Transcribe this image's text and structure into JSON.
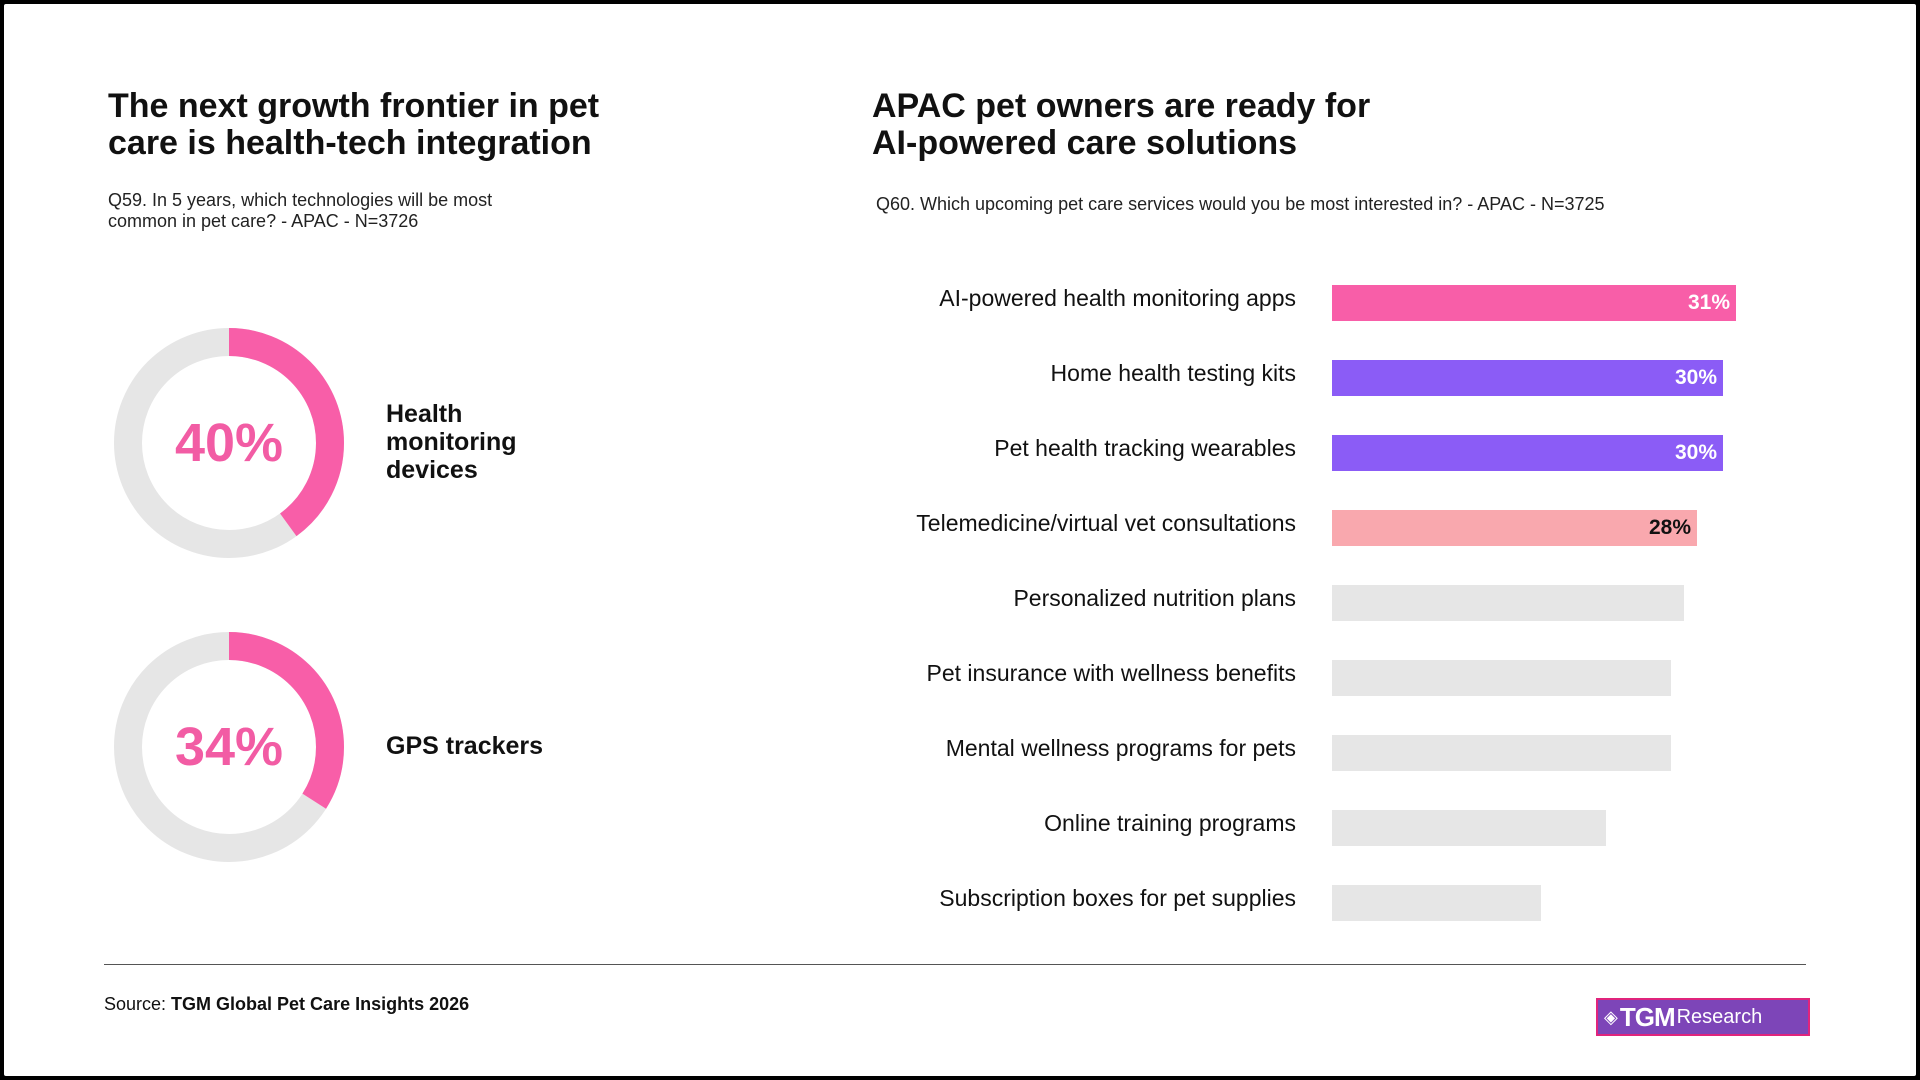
{
  "left": {
    "title_line1": "The next growth frontier in pet",
    "title_line2": "care is health-tech integration",
    "question_line1": "Q59. In 5 years, which technologies will be most",
    "question_line2": "common in pet care? - APAC - N=3726"
  },
  "right": {
    "title_line1": "APAC pet owners are ready for",
    "title_line2": "AI-powered care solutions",
    "question": "Q60. Which upcoming pet care services would you be most interested in? - APAC - N=3725"
  },
  "colors": {
    "pink": "#f85ea8",
    "purple": "#8b5cf6",
    "light_pink": "#f9a8ae",
    "grey": "#e6e6e6"
  },
  "chart_data": [
    {
      "type": "pie",
      "items": [
        {
          "label_lines": [
            "Health",
            "monitoring",
            "devices"
          ],
          "value": 40,
          "value_label": "40%"
        },
        {
          "label_lines": [
            "GPS trackers"
          ],
          "value": 34,
          "value_label": "34%"
        }
      ]
    },
    {
      "type": "bar",
      "orientation": "horizontal",
      "categories": [
        "AI-powered health monitoring apps",
        "Home health testing kits",
        "Pet health tracking wearables",
        "Telemedicine/virtual vet consultations",
        "Personalized nutrition plans",
        "Pet insurance with wellness benefits",
        "Mental wellness programs for pets",
        "Online training programs",
        "Subscription boxes for pet supplies"
      ],
      "values": [
        31,
        30,
        30,
        28,
        27,
        26,
        26,
        21,
        16
      ],
      "value_labels": [
        "31%",
        "30%",
        "30%",
        "28%",
        "",
        "",
        "",
        "",
        ""
      ],
      "bar_colors": [
        "#f85ea8",
        "#8b5cf6",
        "#8b5cf6",
        "#f9a8ae",
        "#e6e6e6",
        "#e6e6e6",
        "#e6e6e6",
        "#e6e6e6",
        "#e6e6e6"
      ],
      "label_colors": [
        "#ffffff",
        "#ffffff",
        "#ffffff",
        "#111111",
        "#111111",
        "#111111",
        "#111111",
        "#111111",
        "#111111"
      ],
      "xlim": [
        0,
        31
      ]
    }
  ],
  "footer": {
    "source_prefix": "Source: ",
    "source_name": "TGM Global Pet Care Insights 2026",
    "logo_mark": "◈",
    "logo_tgm": "TGM",
    "logo_research": "Research"
  }
}
